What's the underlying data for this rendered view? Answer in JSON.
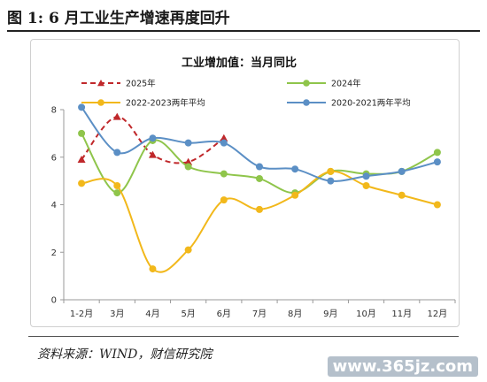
{
  "figure": {
    "title": "图 1:  6 月工业生产增速再度回升",
    "source": "资料来源：WIND，财信研究院",
    "watermark": "www.365jz.com"
  },
  "chart_data": {
    "type": "line",
    "title": "工业增加值：当月同比",
    "xlabel": "",
    "ylabel": "",
    "categories": [
      "1-2月",
      "3月",
      "4月",
      "5月",
      "6月",
      "7月",
      "8月",
      "9月",
      "10月",
      "11月",
      "12月"
    ],
    "ylim": [
      0,
      8
    ],
    "yticks": [
      0,
      2,
      4,
      6,
      8
    ],
    "grid": false,
    "legend_position": "top",
    "series": [
      {
        "name": "2025年",
        "color": "#c0282b",
        "dashed": true,
        "marker": "triangle",
        "values": [
          5.9,
          7.7,
          6.1,
          5.8,
          6.8,
          null,
          null,
          null,
          null,
          null,
          null
        ]
      },
      {
        "name": "2024年",
        "color": "#8fc54b",
        "dashed": false,
        "marker": "circle",
        "values": [
          7.0,
          4.5,
          6.7,
          5.6,
          5.3,
          5.1,
          4.5,
          5.4,
          5.3,
          5.4,
          6.2
        ]
      },
      {
        "name": "2022-2023两年平均",
        "color": "#f2b81b",
        "dashed": false,
        "marker": "circle",
        "values": [
          4.9,
          4.8,
          1.3,
          2.1,
          4.2,
          3.8,
          4.4,
          5.4,
          4.8,
          4.4,
          4.0
        ]
      },
      {
        "name": "2020-2021两年平均",
        "color": "#5b8fc5",
        "dashed": false,
        "marker": "circle",
        "values": [
          8.1,
          6.2,
          6.8,
          6.6,
          6.6,
          5.6,
          5.5,
          5.0,
          5.2,
          5.4,
          5.8
        ]
      }
    ]
  }
}
